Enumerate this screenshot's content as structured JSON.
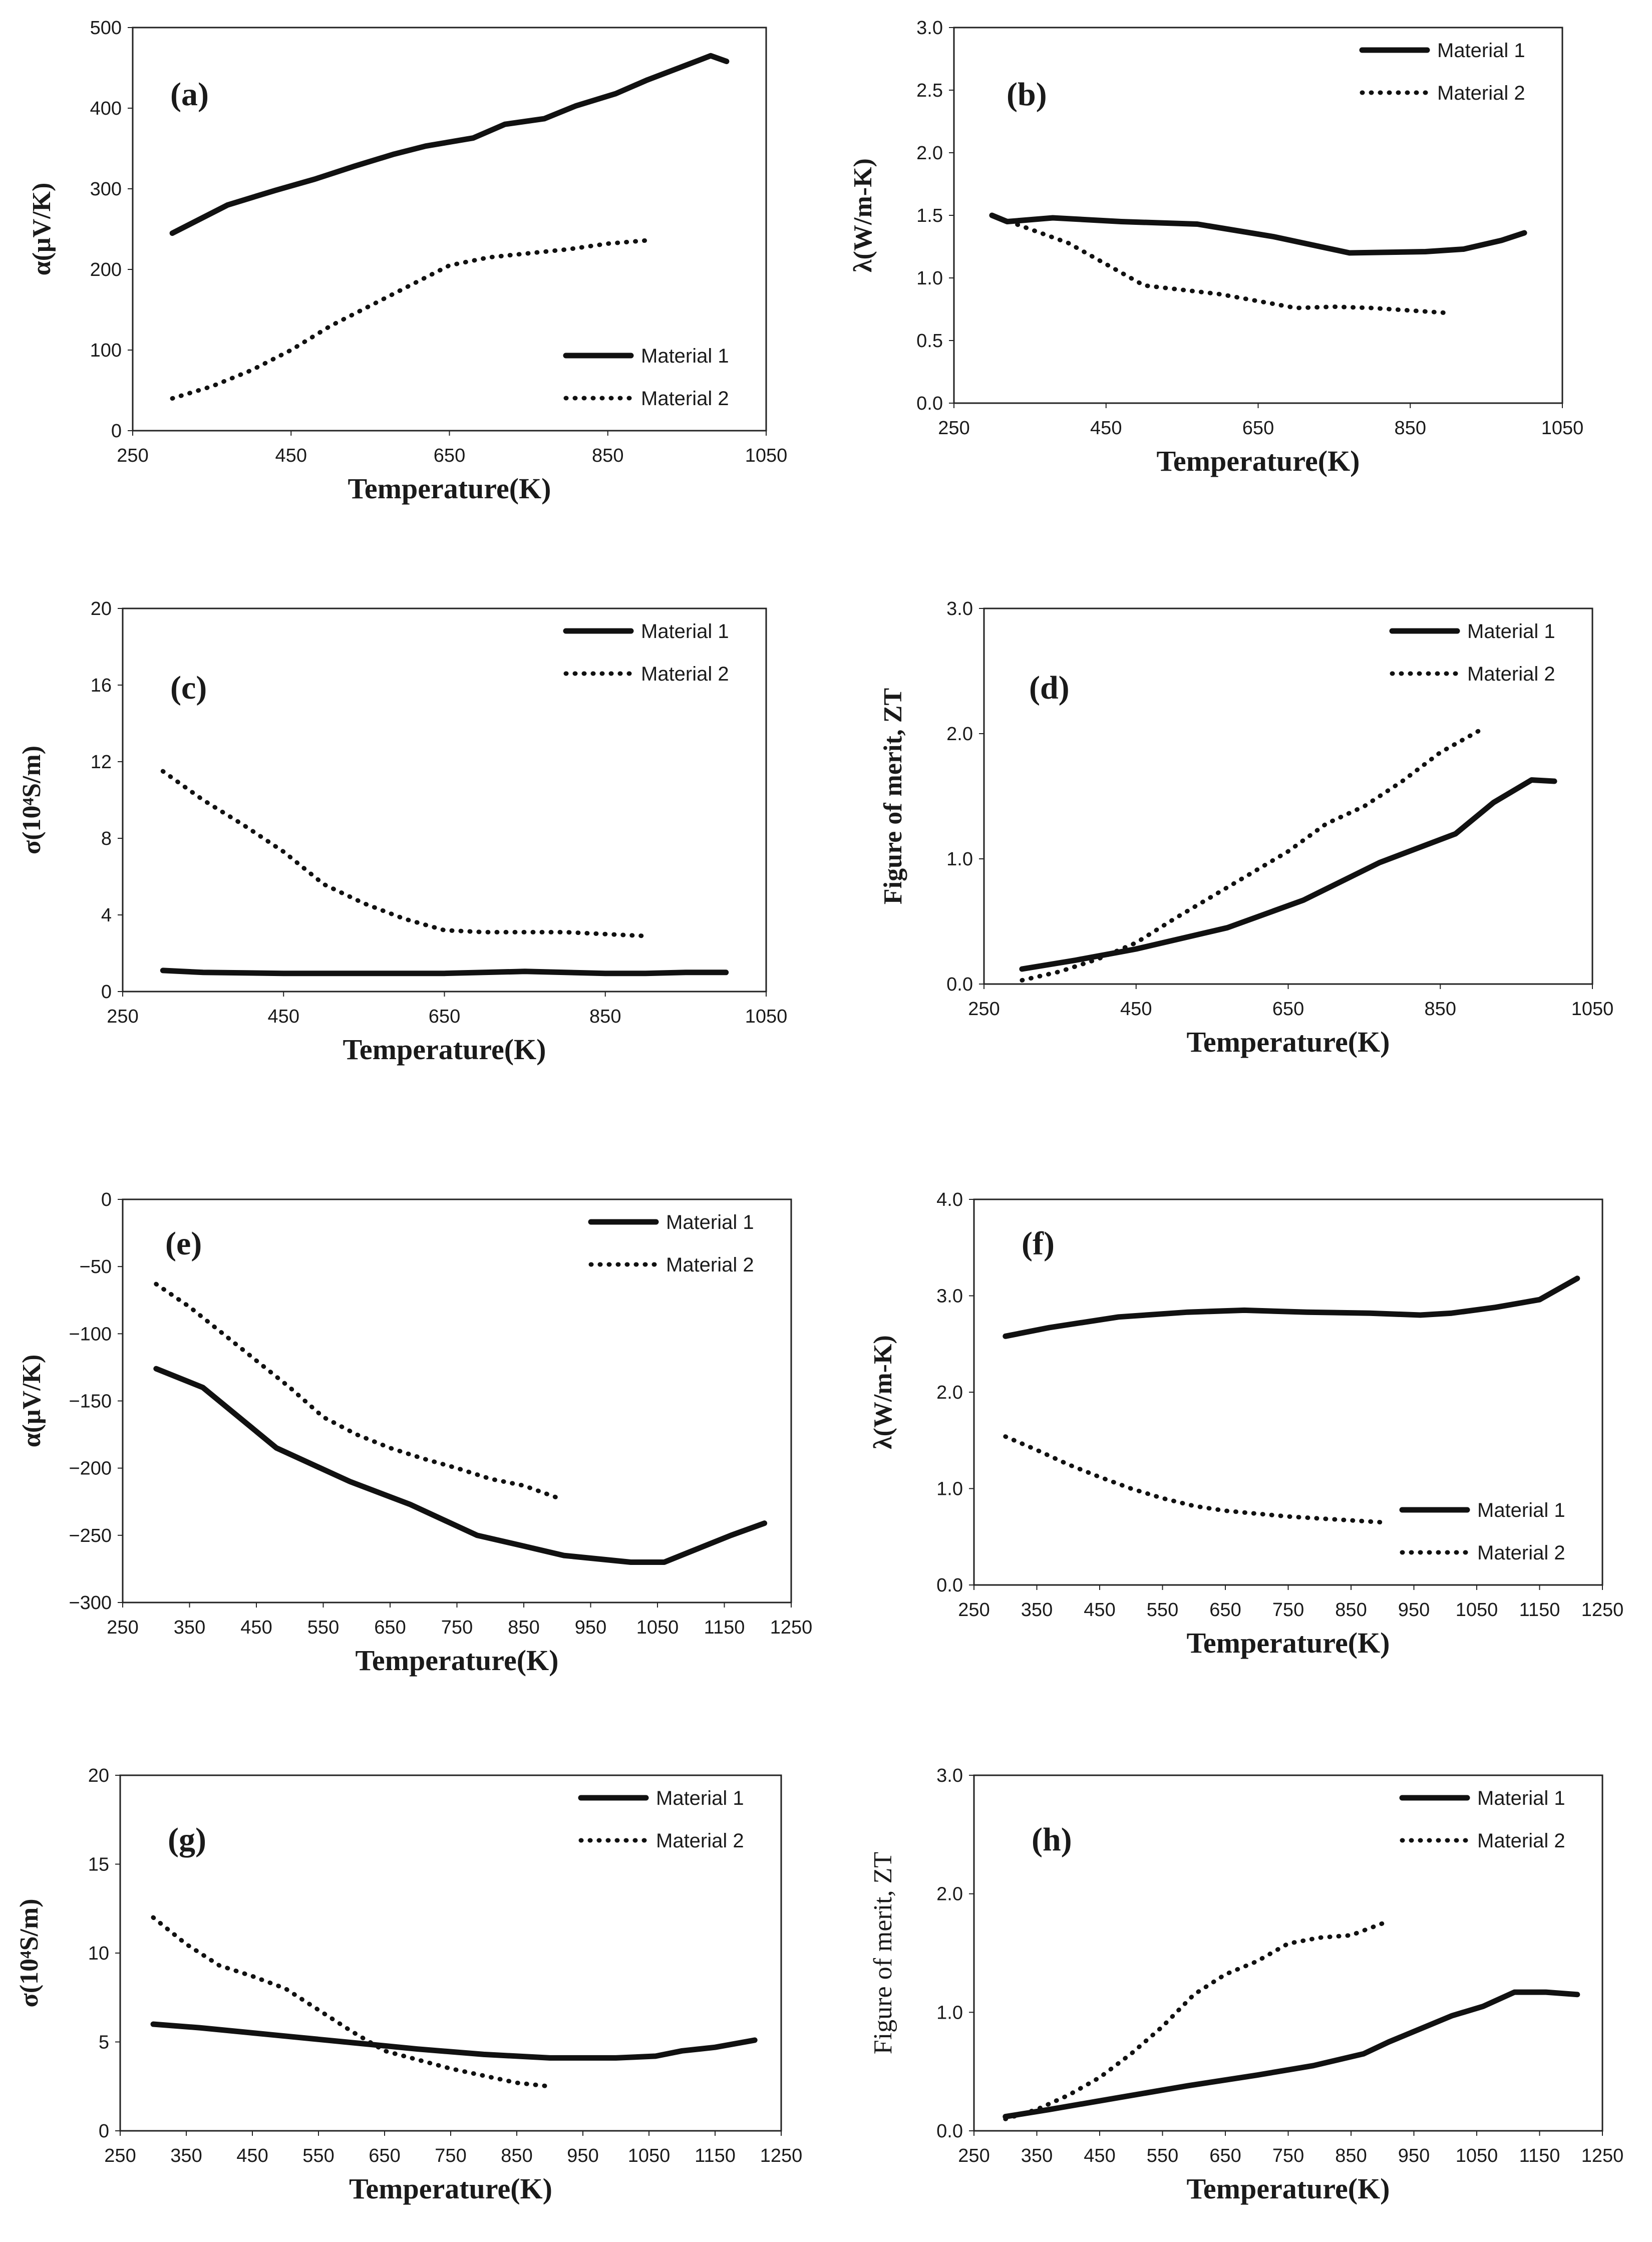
{
  "chart_data": [
    {
      "id": "a",
      "type": "line",
      "label": "(a)",
      "xlabel": "Temperature(K)",
      "ylabel": "α(μV/K)",
      "xlim": [
        250,
        1050
      ],
      "ylim": [
        0,
        500
      ],
      "xticks": [
        "250",
        "450",
        "650",
        "850",
        "1050"
      ],
      "yticks": [
        "0",
        "100",
        "200",
        "300",
        "400",
        "500"
      ],
      "legend": "bottom-right",
      "series": [
        {
          "name": "Material 1",
          "style": "solid",
          "x": [
            300,
            370,
            430,
            480,
            530,
            580,
            620,
            680,
            720,
            770,
            810,
            860,
            900,
            940,
            980,
            1000
          ],
          "y": [
            245,
            280,
            298,
            312,
            328,
            343,
            353,
            363,
            380,
            387,
            403,
            418,
            435,
            450,
            465,
            458
          ]
        },
        {
          "name": "Material 2",
          "style": "dotted",
          "x": [
            300,
            350,
            400,
            450,
            500,
            550,
            600,
            650,
            700,
            750,
            800,
            850,
            900
          ],
          "y": [
            40,
            55,
            75,
            100,
            130,
            155,
            180,
            205,
            215,
            220,
            225,
            232,
            236
          ]
        }
      ]
    },
    {
      "id": "b",
      "type": "line",
      "label": "(b)",
      "xlabel": "Temperature(K)",
      "ylabel": "λ(W/m-K)",
      "xlim": [
        250,
        1050
      ],
      "ylim": [
        0,
        3
      ],
      "xticks": [
        "250",
        "450",
        "650",
        "850",
        "1050"
      ],
      "yticks": [
        "0.0",
        "0.5",
        "1.0",
        "1.5",
        "2.0",
        "2.5",
        "3.0"
      ],
      "legend": "top-right",
      "series": [
        {
          "name": "Material 1",
          "style": "solid",
          "x": [
            300,
            320,
            380,
            470,
            570,
            670,
            770,
            870,
            920,
            970,
            1000
          ],
          "y": [
            1.5,
            1.45,
            1.48,
            1.45,
            1.43,
            1.33,
            1.2,
            1.21,
            1.23,
            1.3,
            1.36
          ]
        },
        {
          "name": "Material 2",
          "style": "dotted",
          "x": [
            300,
            400,
            500,
            600,
            700,
            750,
            800,
            900
          ],
          "y": [
            1.5,
            1.28,
            0.94,
            0.87,
            0.76,
            0.77,
            0.76,
            0.72
          ]
        }
      ]
    },
    {
      "id": "c",
      "type": "line",
      "label": "(c)",
      "xlabel": "Temperature(K)",
      "ylabel": "σ(10⁴S/m)",
      "xlim": [
        250,
        1050
      ],
      "ylim": [
        0,
        20
      ],
      "xticks": [
        "250",
        "450",
        "650",
        "850",
        "1050"
      ],
      "yticks": [
        "0",
        "4",
        "8",
        "12",
        "16",
        "20"
      ],
      "legend": "top-right",
      "series": [
        {
          "name": "Material 1",
          "style": "solid",
          "x": [
            300,
            350,
            450,
            550,
            650,
            750,
            850,
            900,
            950,
            1000
          ],
          "y": [
            1.1,
            1.0,
            0.95,
            0.95,
            0.95,
            1.05,
            0.95,
            0.95,
            1.0,
            1.0
          ]
        },
        {
          "name": "Material 2",
          "style": "dotted",
          "x": [
            300,
            350,
            400,
            450,
            500,
            550,
            600,
            650,
            700,
            750,
            800,
            850,
            900
          ],
          "y": [
            11.5,
            10.0,
            8.7,
            7.3,
            5.6,
            4.6,
            3.8,
            3.2,
            3.1,
            3.1,
            3.1,
            3.0,
            2.9
          ]
        }
      ]
    },
    {
      "id": "d",
      "type": "line",
      "label": "(d)",
      "xlabel": "Temperature(K)",
      "ylabel": "Figure of merit, ZT",
      "xlim": [
        250,
        1050
      ],
      "ylim": [
        0,
        3
      ],
      "xticks": [
        "250",
        "450",
        "650",
        "850",
        "1050"
      ],
      "yticks": [
        "0.0",
        "1.0",
        "2.0",
        "3.0"
      ],
      "legend": "top-right",
      "series": [
        {
          "name": "Material 1",
          "style": "solid",
          "x": [
            300,
            370,
            450,
            570,
            670,
            770,
            870,
            920,
            970,
            1000
          ],
          "y": [
            0.12,
            0.19,
            0.28,
            0.45,
            0.67,
            0.97,
            1.2,
            1.45,
            1.63,
            1.62
          ]
        },
        {
          "name": "Material 2",
          "style": "dotted",
          "x": [
            300,
            350,
            400,
            450,
            500,
            550,
            600,
            650,
            700,
            750,
            800,
            850,
            900
          ],
          "y": [
            0.03,
            0.1,
            0.2,
            0.33,
            0.52,
            0.7,
            0.88,
            1.06,
            1.28,
            1.42,
            1.62,
            1.85,
            2.02
          ]
        }
      ]
    },
    {
      "id": "e",
      "type": "line",
      "label": "(e)",
      "xlabel": "Temperature(K)",
      "ylabel": "α(μV/K)",
      "xlim": [
        250,
        1250
      ],
      "ylim": [
        -300,
        0
      ],
      "xticks": [
        "250",
        "350",
        "450",
        "550",
        "650",
        "750",
        "850",
        "950",
        "1050",
        "1150",
        "1250"
      ],
      "yticks": [
        "−300",
        "−250",
        "−200",
        "−150",
        "−100",
        "−50",
        "0"
      ],
      "legend": "top-right",
      "series": [
        {
          "name": "Material 1",
          "style": "solid",
          "x": [
            300,
            370,
            480,
            590,
            680,
            780,
            850,
            910,
            1010,
            1060,
            1100,
            1160,
            1210
          ],
          "y": [
            -126,
            -140,
            -185,
            -210,
            -227,
            -250,
            -258,
            -265,
            -270,
            -270,
            -262,
            -250,
            -241
          ]
        },
        {
          "name": "Material 2",
          "style": "dotted",
          "x": [
            300,
            350,
            400,
            450,
            500,
            550,
            600,
            650,
            700,
            750,
            800,
            850,
            900
          ],
          "y": [
            -63,
            -80,
            -100,
            -120,
            -140,
            -162,
            -175,
            -185,
            -193,
            -200,
            -208,
            -213,
            -222
          ]
        }
      ]
    },
    {
      "id": "f",
      "type": "line",
      "label": "(f)",
      "xlabel": "Temperature(K)",
      "ylabel": "λ(W/m-K)",
      "xlim": [
        250,
        1250
      ],
      "ylim": [
        0,
        4
      ],
      "xticks": [
        "250",
        "350",
        "450",
        "550",
        "650",
        "750",
        "850",
        "950",
        "1050",
        "1150",
        "1250"
      ],
      "yticks": [
        "0.0",
        "1.0",
        "2.0",
        "3.0",
        "4.0"
      ],
      "legend": "bottom-right",
      "series": [
        {
          "name": "Material 1",
          "style": "solid",
          "x": [
            300,
            370,
            480,
            590,
            680,
            780,
            880,
            960,
            1010,
            1080,
            1150,
            1210
          ],
          "y": [
            2.58,
            2.67,
            2.78,
            2.83,
            2.85,
            2.83,
            2.82,
            2.8,
            2.82,
            2.88,
            2.96,
            3.18
          ]
        },
        {
          "name": "Material 2",
          "style": "dotted",
          "x": [
            300,
            350,
            400,
            450,
            500,
            550,
            600,
            650,
            700,
            750,
            800,
            850,
            900
          ],
          "y": [
            1.54,
            1.4,
            1.25,
            1.12,
            1.0,
            0.9,
            0.82,
            0.77,
            0.74,
            0.71,
            0.69,
            0.67,
            0.65
          ]
        }
      ]
    },
    {
      "id": "g",
      "type": "line",
      "label": "(g)",
      "xlabel": "Temperature(K)",
      "ylabel": "σ(10⁴S/m)",
      "xlim": [
        250,
        1250
      ],
      "ylim": [
        0,
        20
      ],
      "xticks": [
        "250",
        "350",
        "450",
        "550",
        "650",
        "750",
        "850",
        "950",
        "1050",
        "1150",
        "1250"
      ],
      "yticks": [
        "0",
        "5",
        "10",
        "15",
        "20"
      ],
      "legend": "top-right",
      "series": [
        {
          "name": "Material 1",
          "style": "solid",
          "x": [
            300,
            370,
            480,
            590,
            700,
            800,
            900,
            1000,
            1060,
            1100,
            1150,
            1210
          ],
          "y": [
            6.0,
            5.8,
            5.4,
            5.0,
            4.6,
            4.3,
            4.1,
            4.1,
            4.2,
            4.5,
            4.7,
            5.1
          ]
        },
        {
          "name": "Material 2",
          "style": "dotted",
          "x": [
            300,
            350,
            400,
            450,
            500,
            550,
            600,
            650,
            700,
            750,
            800,
            850,
            900
          ],
          "y": [
            12.0,
            10.5,
            9.3,
            8.7,
            8.0,
            6.8,
            5.6,
            4.5,
            4.0,
            3.5,
            3.1,
            2.7,
            2.5
          ]
        }
      ]
    },
    {
      "id": "h",
      "type": "line",
      "label": "(h)",
      "xlabel": "Temperature(K)",
      "ylabel": "Figure of merit, ZT",
      "xlim": [
        250,
        1250
      ],
      "ylim": [
        0,
        3
      ],
      "xticks": [
        "250",
        "350",
        "450",
        "550",
        "650",
        "750",
        "850",
        "950",
        "1050",
        "1150",
        "1250"
      ],
      "yticks": [
        "0.0",
        "1.0",
        "2.0",
        "3.0"
      ],
      "legend": "top-right",
      "series": [
        {
          "name": "Material 1",
          "style": "solid",
          "x": [
            300,
            370,
            480,
            590,
            700,
            790,
            870,
            910,
            1010,
            1060,
            1110,
            1160,
            1210
          ],
          "y": [
            0.12,
            0.18,
            0.28,
            0.38,
            0.47,
            0.55,
            0.65,
            0.75,
            0.97,
            1.05,
            1.17,
            1.17,
            1.15
          ]
        },
        {
          "name": "Material 2",
          "style": "dotted",
          "x": [
            300,
            350,
            400,
            450,
            500,
            550,
            600,
            650,
            700,
            750,
            800,
            850,
            900
          ],
          "y": [
            0.1,
            0.18,
            0.3,
            0.45,
            0.65,
            0.88,
            1.15,
            1.32,
            1.43,
            1.58,
            1.63,
            1.65,
            1.75
          ]
        }
      ]
    }
  ]
}
